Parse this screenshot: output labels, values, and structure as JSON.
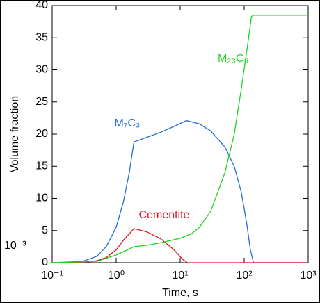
{
  "chart_data": {
    "type": "line",
    "xlabel": "Time, s",
    "ylabel": "Volume fraction",
    "xscale": "log",
    "xlim": [
      0.1,
      1000
    ],
    "ylim": [
      0,
      40
    ],
    "xticks": [
      {
        "value": 0.1,
        "label": "10⁻¹"
      },
      {
        "value": 1,
        "label": "10⁰"
      },
      {
        "value": 10,
        "label": "10¹"
      },
      {
        "value": 100,
        "label": "10²"
      },
      {
        "value": 1000,
        "label": "10³"
      }
    ],
    "yticks": [
      0,
      5,
      10,
      15,
      20,
      25,
      30,
      35,
      40
    ],
    "annotations": [
      "10⁻³"
    ],
    "series": [
      {
        "name": "M₇C₃",
        "color": "#1f6fd6",
        "x": [
          0.1,
          0.3,
          0.5,
          0.7,
          1.0,
          1.3,
          1.6,
          1.9,
          3,
          5,
          8,
          12.5,
          20,
          30,
          50,
          70,
          90,
          110,
          125,
          140,
          1000
        ],
        "values": [
          0,
          0.2,
          1,
          2.5,
          5.5,
          9.5,
          14,
          18.8,
          19.5,
          20.3,
          21.2,
          22.1,
          21.6,
          20.5,
          18,
          15,
          11,
          6,
          2,
          0,
          0
        ]
      },
      {
        "name": "Cementite",
        "color": "#e0141e",
        "x": [
          0.1,
          0.3,
          0.5,
          0.7,
          1.0,
          1.3,
          1.9,
          3,
          5,
          8,
          11,
          13,
          1000
        ],
        "values": [
          0,
          0,
          0.3,
          0.8,
          2,
          3.5,
          5.3,
          4.8,
          3.7,
          2,
          0.5,
          0,
          0
        ]
      },
      {
        "name": "M₂₃C₆",
        "color": "#1ed21e",
        "x": [
          0.1,
          0.5,
          1.0,
          1.5,
          1.9,
          3,
          5,
          10,
          15,
          20,
          30,
          50,
          70,
          90,
          110,
          130,
          140,
          1000
        ],
        "values": [
          0,
          0.2,
          1.2,
          2,
          2.5,
          2.7,
          3.1,
          3.8,
          4.5,
          5.5,
          8,
          14,
          20,
          27,
          33,
          38.3,
          38.5,
          38.5
        ]
      }
    ]
  }
}
